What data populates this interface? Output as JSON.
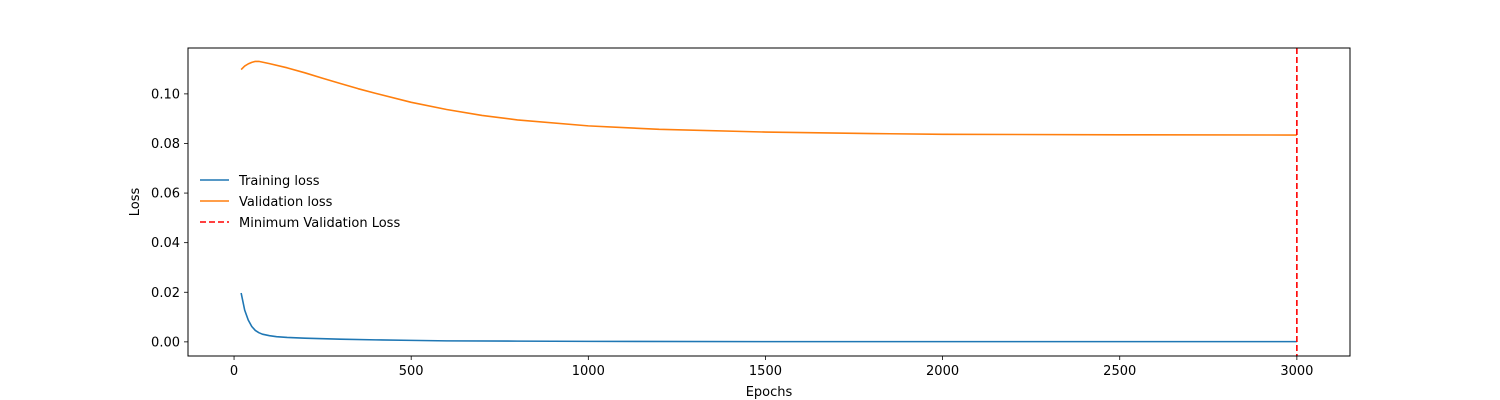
{
  "chart_data": {
    "type": "line",
    "xlabel": "Epochs",
    "ylabel": "Loss",
    "xlim": [
      -130,
      3150
    ],
    "ylim": [
      -0.0057,
      0.1185
    ],
    "xticks": [
      0,
      500,
      1000,
      1500,
      2000,
      2500,
      3000
    ],
    "xtick_labels": [
      "0",
      "500",
      "1000",
      "1500",
      "2000",
      "2500",
      "3000"
    ],
    "yticks": [
      0.0,
      0.02,
      0.04,
      0.06,
      0.08,
      0.1
    ],
    "ytick_labels": [
      "0.00",
      "0.02",
      "0.04",
      "0.06",
      "0.08",
      "0.10"
    ],
    "grid": false,
    "legend_placement": "center-left",
    "series": [
      {
        "name": "Training loss",
        "color": "#1f77b4",
        "style": "solid",
        "x": [
          20,
          30,
          40,
          50,
          60,
          70,
          80,
          100,
          120,
          150,
          200,
          300,
          400,
          500,
          600,
          800,
          1000,
          1500,
          2000,
          2500,
          3000
        ],
        "y": [
          0.0197,
          0.0128,
          0.0088,
          0.0062,
          0.0046,
          0.0037,
          0.0031,
          0.0025,
          0.0021,
          0.0018,
          0.0015,
          0.0011,
          0.0008,
          0.0006,
          0.0004,
          0.0003,
          0.0002,
          0.0001,
          0.0001,
          0.0001,
          0.0001
        ]
      },
      {
        "name": "Validation loss",
        "color": "#ff7f0e",
        "style": "solid",
        "x": [
          20,
          30,
          40,
          50,
          60,
          70,
          80,
          100,
          150,
          200,
          250,
          300,
          350,
          400,
          500,
          600,
          700,
          800,
          1000,
          1200,
          1500,
          1800,
          2000,
          2500,
          3000
        ],
        "y": [
          0.1098,
          0.1112,
          0.1121,
          0.1127,
          0.1131,
          0.1131,
          0.1128,
          0.1122,
          0.1105,
          0.1085,
          0.1063,
          0.1042,
          0.1021,
          0.1002,
          0.0966,
          0.0937,
          0.0913,
          0.0895,
          0.0871,
          0.0857,
          0.0846,
          0.084,
          0.0837,
          0.0835,
          0.0834
        ]
      }
    ],
    "vlines": [
      {
        "name": "Minimum Validation Loss",
        "x": 3000,
        "color": "#ff0000",
        "style": "dashed"
      }
    ]
  }
}
